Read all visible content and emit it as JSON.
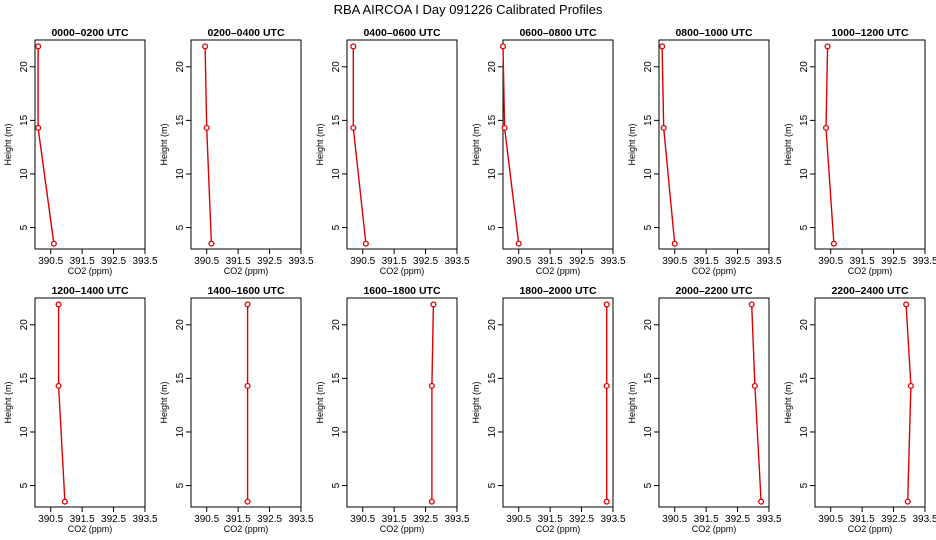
{
  "title": "RBA AIRCOA I  Day 091226  Calibrated Profiles",
  "chart_data": {
    "type": "line",
    "xlabel": "CO2 (ppm)",
    "ylabel": "Height (m)",
    "xlim": [
      390.0,
      393.5
    ],
    "ylim": [
      3.0,
      22.5
    ],
    "xticks": [
      "390.5",
      "391.5",
      "392.5",
      "393.5"
    ],
    "yticks": [
      "5",
      "10",
      "15",
      "20"
    ],
    "heights": [
      3.5,
      14.3,
      21.9
    ],
    "color": "#dd0000",
    "panels": [
      {
        "title": "0000–0200 UTC",
        "co2": [
          390.6,
          390.1,
          390.1
        ]
      },
      {
        "title": "0200–0400 UTC",
        "co2": [
          390.65,
          390.5,
          390.45
        ]
      },
      {
        "title": "0400–0600 UTC",
        "co2": [
          390.6,
          390.2,
          390.2
        ]
      },
      {
        "title": "0600–0800 UTC",
        "co2": [
          390.5,
          390.05,
          390.0
        ]
      },
      {
        "title": "0800–1000 UTC",
        "co2": [
          390.5,
          390.15,
          390.1
        ]
      },
      {
        "title": "1000–1200 UTC",
        "co2": [
          390.6,
          390.35,
          390.4
        ]
      },
      {
        "title": "1200–1400 UTC",
        "co2": [
          390.95,
          390.75,
          390.75
        ]
      },
      {
        "title": "1400–1600 UTC",
        "co2": [
          391.8,
          391.8,
          391.8
        ]
      },
      {
        "title": "1600–1800 UTC",
        "co2": [
          392.7,
          392.7,
          392.75
        ]
      },
      {
        "title": "1800–2000 UTC",
        "co2": [
          393.3,
          393.3,
          393.3
        ]
      },
      {
        "title": "2000–2200 UTC",
        "co2": [
          393.25,
          393.05,
          392.95
        ]
      },
      {
        "title": "2200–2400 UTC",
        "co2": [
          392.95,
          393.05,
          392.9
        ]
      }
    ]
  }
}
